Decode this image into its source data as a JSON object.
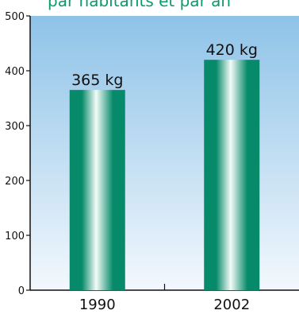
{
  "title": "par habitants et par an",
  "colors": {
    "title": "#0a9a6e",
    "bar_dark": "#078a6a",
    "bar_light": "#f4fbf8",
    "bg_top": "#8ec3e8",
    "bg_bottom": "#f3f8fd"
  },
  "chart_data": {
    "type": "bar",
    "categories": [
      "1990",
      "2002"
    ],
    "values": [
      365,
      420
    ],
    "data_labels": [
      "365 kg",
      "420 kg"
    ],
    "yticks": [
      0,
      100,
      200,
      300,
      400,
      500
    ],
    "ylim": [
      0,
      500
    ],
    "title": "par habitants et par an",
    "xlabel": "",
    "ylabel": "",
    "grid": false
  }
}
